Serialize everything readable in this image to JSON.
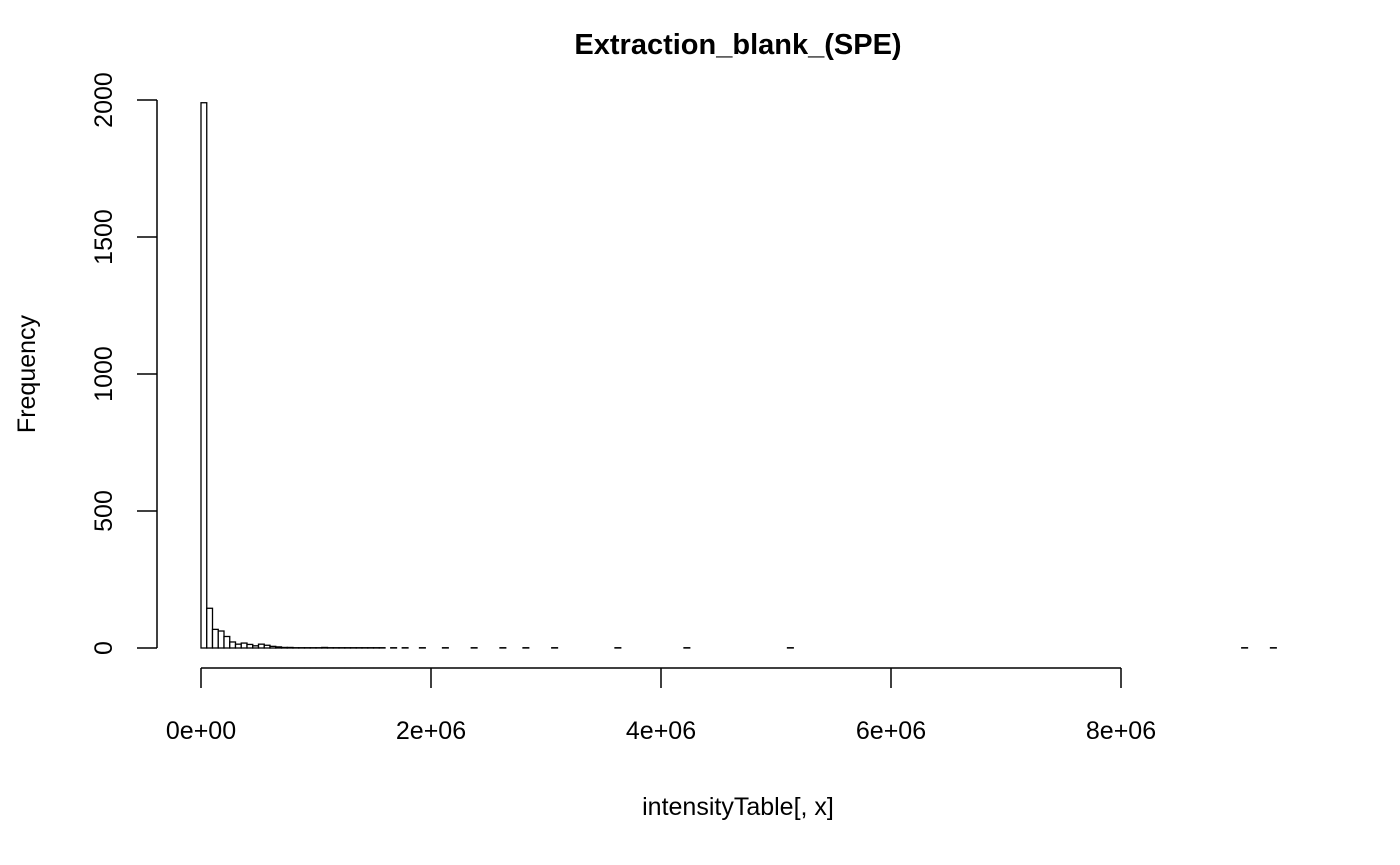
{
  "chart_data": {
    "type": "bar",
    "subtype": "histogram",
    "title": "Extraction_blank_(SPE)",
    "xlabel": "intensityTable[, x]",
    "ylabel": "Frequency",
    "bin_width": 50000,
    "bin_start": 0,
    "counts": [
      1990,
      145,
      68,
      62,
      42,
      22,
      14,
      18,
      13,
      8,
      14,
      10,
      6,
      4,
      2,
      2,
      1,
      1,
      1,
      1,
      1,
      2,
      1,
      1,
      1,
      1,
      1,
      1,
      1,
      1,
      1,
      1,
      0,
      1,
      0,
      1,
      0,
      0,
      1,
      0,
      0,
      0,
      1,
      0,
      0,
      0,
      0,
      1,
      0,
      0,
      0,
      0,
      1,
      0,
      0,
      0,
      1,
      0,
      0,
      0,
      0,
      1,
      0,
      0,
      0,
      0,
      0,
      0,
      0,
      0,
      0,
      0,
      1,
      0,
      0,
      0,
      0,
      0,
      0,
      0,
      0,
      0,
      0,
      0,
      1,
      0,
      0,
      0,
      0,
      0,
      0,
      0,
      0,
      0,
      0,
      0,
      0,
      0,
      0,
      0,
      0,
      0,
      1,
      0,
      0,
      0,
      0,
      0,
      0,
      0,
      0,
      0,
      0,
      0,
      0,
      0,
      0,
      0,
      0,
      0,
      0,
      0,
      0,
      0,
      0,
      0,
      0,
      0,
      0,
      0,
      0,
      0,
      0,
      0,
      0,
      0,
      0,
      0,
      0,
      0,
      0,
      0,
      0,
      0,
      0,
      0,
      0,
      0,
      0,
      0,
      0,
      0,
      0,
      0,
      0,
      0,
      0,
      0,
      0,
      0,
      0,
      0,
      0,
      0,
      0,
      0,
      0,
      0,
      0,
      0,
      0,
      0,
      0,
      0,
      0,
      0,
      0,
      0,
      0,
      0,
      0,
      1,
      0,
      0,
      0,
      0,
      1
    ],
    "x_ticks": [
      0,
      2000000,
      4000000,
      6000000,
      8000000
    ],
    "x_tick_labels": [
      "0e+00",
      "2e+06",
      "4e+06",
      "6e+06",
      "8e+06"
    ],
    "y_ticks": [
      0,
      500,
      1000,
      1500,
      2000
    ],
    "y_tick_labels": [
      "0",
      "500",
      "1000",
      "1500",
      "2000"
    ],
    "xlim": [
      0,
      9350000
    ],
    "ylim": [
      0,
      2000
    ],
    "grid": false,
    "legend": "none"
  }
}
